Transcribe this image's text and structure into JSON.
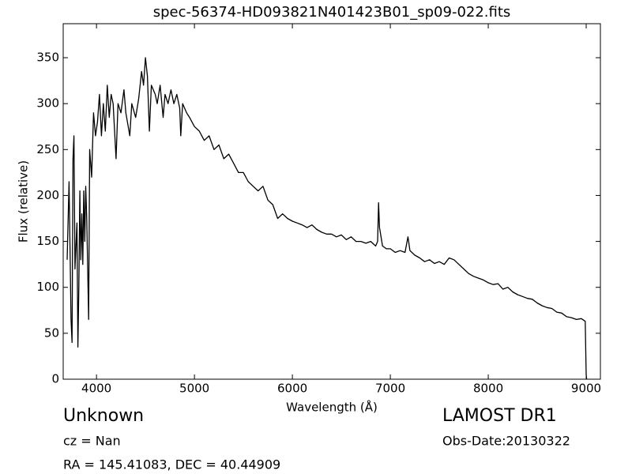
{
  "chart_data": {
    "type": "line",
    "title": "spec-56374-HD093821N401423B01_sp09-022.fits",
    "x_label": "Wavelength (Å)",
    "y_label": "Flux (relative)",
    "annotations": [
      "Unknown",
      "cz = Nan",
      "RA = 145.41083, DEC = 40.44909",
      "LAMOST DR1",
      "Obs-Date:20130322"
    ],
    "color": "#000000",
    "x": [
      3700,
      3720,
      3730,
      3740,
      3750,
      3760,
      3770,
      3780,
      3800,
      3810,
      3820,
      3830,
      3840,
      3850,
      3860,
      3870,
      3880,
      3890,
      3900,
      3920,
      3930,
      3950,
      3970,
      3990,
      4010,
      4030,
      4050,
      4070,
      4090,
      4110,
      4130,
      4150,
      4170,
      4200,
      4220,
      4250,
      4280,
      4300,
      4340,
      4360,
      4400,
      4430,
      4460,
      4480,
      4500,
      4520,
      4540,
      4560,
      4600,
      4620,
      4650,
      4680,
      4700,
      4730,
      4760,
      4790,
      4820,
      4850,
      4860,
      4880,
      4920,
      4950,
      5000,
      5050,
      5100,
      5150,
      5200,
      5250,
      5300,
      5350,
      5400,
      5450,
      5500,
      5550,
      5600,
      5650,
      5700,
      5750,
      5800,
      5850,
      5900,
      5950,
      6000,
      6050,
      6100,
      6150,
      6200,
      6250,
      6300,
      6350,
      6400,
      6450,
      6500,
      6550,
      6600,
      6650,
      6700,
      6750,
      6800,
      6850,
      6870,
      6880,
      6890,
      6920,
      6960,
      7000,
      7050,
      7100,
      7150,
      7180,
      7200,
      7250,
      7300,
      7350,
      7400,
      7450,
      7500,
      7550,
      7600,
      7650,
      7700,
      7750,
      7800,
      7850,
      7900,
      7950,
      8000,
      8050,
      8100,
      8150,
      8200,
      8250,
      8300,
      8350,
      8400,
      8450,
      8500,
      8550,
      8600,
      8650,
      8700,
      8750,
      8800,
      8850,
      8900,
      8950,
      8990,
      9000,
      9005
    ],
    "values": [
      130,
      215,
      140,
      65,
      40,
      240,
      265,
      120,
      170,
      35,
      100,
      205,
      130,
      180,
      125,
      205,
      150,
      210,
      175,
      65,
      250,
      220,
      290,
      265,
      280,
      310,
      265,
      300,
      270,
      320,
      285,
      310,
      300,
      240,
      300,
      290,
      315,
      290,
      265,
      300,
      285,
      305,
      335,
      320,
      350,
      330,
      270,
      320,
      310,
      300,
      320,
      285,
      310,
      300,
      315,
      300,
      310,
      295,
      265,
      300,
      290,
      285,
      275,
      270,
      260,
      265,
      250,
      255,
      240,
      245,
      235,
      225,
      225,
      215,
      210,
      205,
      210,
      195,
      190,
      175,
      180,
      175,
      172,
      170,
      168,
      165,
      168,
      163,
      160,
      158,
      158,
      155,
      157,
      152,
      155,
      150,
      150,
      148,
      150,
      145,
      150,
      192,
      165,
      145,
      142,
      142,
      138,
      140,
      138,
      155,
      140,
      135,
      132,
      128,
      130,
      126,
      128,
      125,
      132,
      130,
      125,
      120,
      115,
      112,
      110,
      108,
      105,
      103,
      104,
      98,
      100,
      95,
      92,
      90,
      88,
      87,
      83,
      80,
      78,
      77,
      73,
      72,
      68,
      67,
      65,
      66,
      63,
      5,
      0
    ],
    "xlim": [
      3660,
      9145
    ],
    "ylim": [
      0,
      387
    ],
    "xticks": [
      4000,
      5000,
      6000,
      7000,
      8000,
      9000
    ],
    "yticks": [
      0,
      50,
      100,
      150,
      200,
      250,
      300,
      350
    ]
  }
}
